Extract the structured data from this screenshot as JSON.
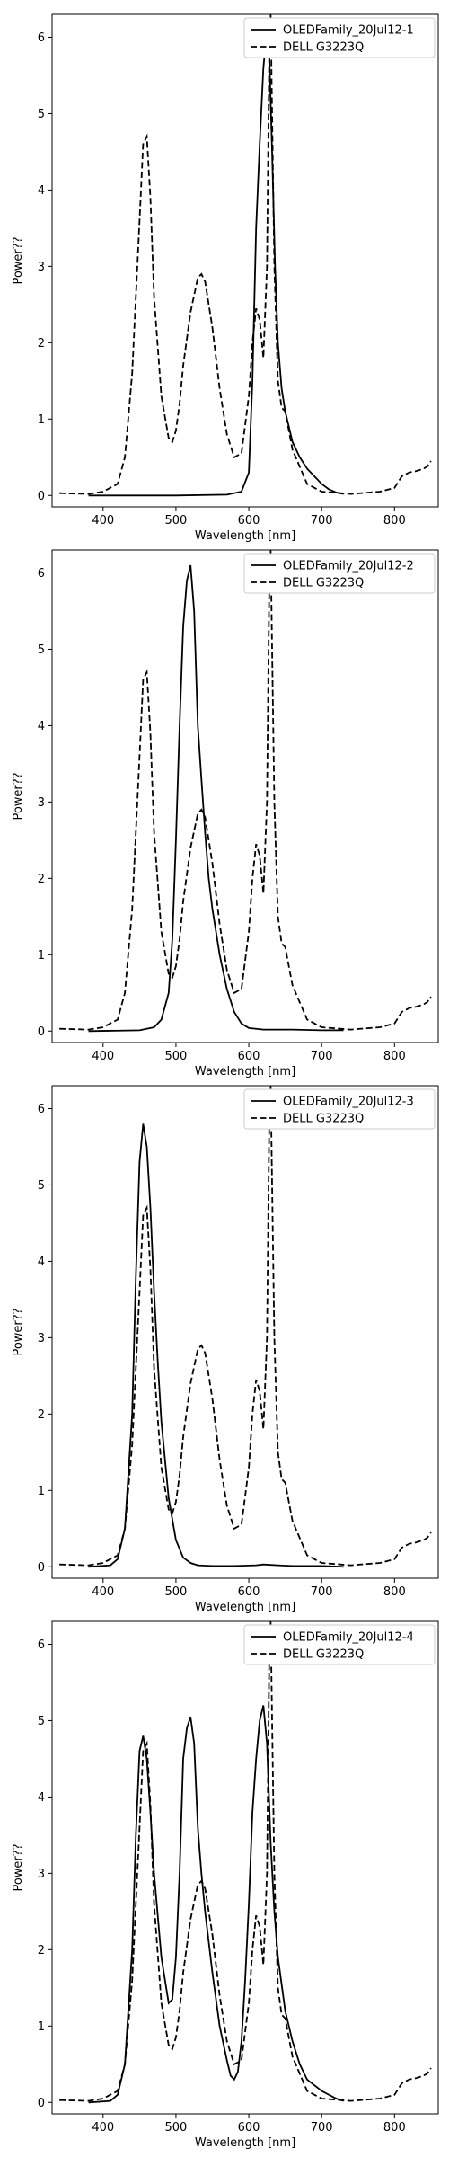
{
  "chart_data": [
    {
      "type": "line",
      "xlabel": "Wavelength [nm]",
      "ylabel": "Power??",
      "xlim": [
        330,
        860
      ],
      "ylim": [
        -0.15,
        6.3
      ],
      "xticks": [
        400,
        500,
        600,
        700,
        800
      ],
      "yticks": [
        0,
        1,
        2,
        3,
        4,
        5,
        6
      ],
      "legend": "upper-right",
      "series": [
        {
          "name": "OLEDFamily_20Jul12-1",
          "style": "solid",
          "x": [
            380,
            500,
            570,
            590,
            600,
            605,
            610,
            615,
            620,
            625,
            628,
            632,
            636,
            640,
            645,
            650,
            655,
            660,
            670,
            680,
            690,
            700,
            710,
            720,
            730
          ],
          "y": [
            0,
            0,
            0.01,
            0.05,
            0.3,
            1.5,
            3.5,
            4.6,
            5.6,
            6.1,
            5.8,
            4.5,
            3.0,
            2.0,
            1.4,
            1.1,
            0.9,
            0.7,
            0.5,
            0.35,
            0.25,
            0.15,
            0.08,
            0.04,
            0.02
          ]
        },
        {
          "name": "DELL G3223Q",
          "style": "dashed",
          "x": [
            340,
            380,
            400,
            420,
            430,
            440,
            450,
            455,
            460,
            465,
            470,
            480,
            490,
            495,
            500,
            505,
            510,
            520,
            530,
            535,
            540,
            550,
            560,
            570,
            580,
            590,
            600,
            605,
            610,
            615,
            620,
            625,
            628,
            630,
            632,
            635,
            640,
            645,
            650,
            660,
            680,
            700,
            740,
            780,
            800,
            810,
            820,
            830,
            840,
            845,
            850
          ],
          "y": [
            0.03,
            0.02,
            0.05,
            0.15,
            0.5,
            1.6,
            3.6,
            4.6,
            4.7,
            3.9,
            2.6,
            1.3,
            0.75,
            0.7,
            0.85,
            1.2,
            1.7,
            2.4,
            2.85,
            2.9,
            2.8,
            2.2,
            1.4,
            0.8,
            0.5,
            0.55,
            1.3,
            2.0,
            2.45,
            2.3,
            1.8,
            3.0,
            5.8,
            6.3,
            5.0,
            3.0,
            1.5,
            1.15,
            1.1,
            0.6,
            0.15,
            0.05,
            0.02,
            0.05,
            0.1,
            0.25,
            0.3,
            0.32,
            0.35,
            0.38,
            0.45
          ]
        }
      ]
    },
    {
      "type": "line",
      "xlabel": "Wavelength [nm]",
      "ylabel": "Power??",
      "xlim": [
        330,
        860
      ],
      "ylim": [
        -0.15,
        6.3
      ],
      "xticks": [
        400,
        500,
        600,
        700,
        800
      ],
      "yticks": [
        0,
        1,
        2,
        3,
        4,
        5,
        6
      ],
      "legend": "upper-right",
      "series": [
        {
          "name": "OLEDFamily_20Jul12-2",
          "style": "solid",
          "x": [
            380,
            450,
            470,
            480,
            490,
            495,
            500,
            505,
            510,
            515,
            520,
            525,
            530,
            535,
            540,
            545,
            550,
            560,
            570,
            580,
            590,
            600,
            620,
            640,
            660,
            700,
            730
          ],
          "y": [
            0,
            0.01,
            0.05,
            0.15,
            0.5,
            1.2,
            2.5,
            4.0,
            5.3,
            5.9,
            6.1,
            5.5,
            4.0,
            3.3,
            2.6,
            2.0,
            1.6,
            1.0,
            0.55,
            0.25,
            0.1,
            0.04,
            0.02,
            0.02,
            0.02,
            0.01,
            0.01
          ]
        },
        {
          "name": "DELL G3223Q",
          "style": "dashed",
          "x": [
            340,
            380,
            400,
            420,
            430,
            440,
            450,
            455,
            460,
            465,
            470,
            480,
            490,
            495,
            500,
            505,
            510,
            520,
            530,
            535,
            540,
            550,
            560,
            570,
            580,
            590,
            600,
            605,
            610,
            615,
            620,
            625,
            628,
            630,
            632,
            635,
            640,
            645,
            650,
            660,
            680,
            700,
            740,
            780,
            800,
            810,
            820,
            830,
            840,
            845,
            850
          ],
          "y": [
            0.03,
            0.02,
            0.05,
            0.15,
            0.5,
            1.6,
            3.6,
            4.6,
            4.7,
            3.9,
            2.6,
            1.3,
            0.75,
            0.7,
            0.85,
            1.2,
            1.7,
            2.4,
            2.85,
            2.9,
            2.8,
            2.2,
            1.4,
            0.8,
            0.5,
            0.55,
            1.3,
            2.0,
            2.45,
            2.3,
            1.8,
            3.0,
            5.8,
            6.3,
            5.0,
            3.0,
            1.5,
            1.15,
            1.1,
            0.6,
            0.15,
            0.05,
            0.02,
            0.05,
            0.1,
            0.25,
            0.3,
            0.32,
            0.35,
            0.38,
            0.45
          ]
        }
      ]
    },
    {
      "type": "line",
      "xlabel": "Wavelength [nm]",
      "ylabel": "Power??",
      "xlim": [
        330,
        860
      ],
      "ylim": [
        -0.15,
        6.3
      ],
      "xticks": [
        400,
        500,
        600,
        700,
        800
      ],
      "yticks": [
        0,
        1,
        2,
        3,
        4,
        5,
        6
      ],
      "legend": "upper-right",
      "series": [
        {
          "name": "OLEDFamily_20Jul12-3",
          "style": "solid",
          "x": [
            380,
            410,
            420,
            430,
            440,
            445,
            450,
            455,
            460,
            465,
            470,
            475,
            480,
            490,
            500,
            510,
            520,
            530,
            550,
            580,
            610,
            620,
            640,
            660,
            700,
            730
          ],
          "y": [
            0,
            0.02,
            0.1,
            0.5,
            2.0,
            3.8,
            5.3,
            5.8,
            5.5,
            4.7,
            3.6,
            2.7,
            1.9,
            0.9,
            0.35,
            0.12,
            0.05,
            0.02,
            0.01,
            0.01,
            0.02,
            0.03,
            0.02,
            0.01,
            0.01,
            0.0
          ]
        },
        {
          "name": "DELL G3223Q",
          "style": "dashed",
          "x": [
            340,
            380,
            400,
            420,
            430,
            440,
            450,
            455,
            460,
            465,
            470,
            480,
            490,
            495,
            500,
            505,
            510,
            520,
            530,
            535,
            540,
            550,
            560,
            570,
            580,
            590,
            600,
            605,
            610,
            615,
            620,
            625,
            628,
            630,
            632,
            635,
            640,
            645,
            650,
            660,
            680,
            700,
            740,
            780,
            800,
            810,
            820,
            830,
            840,
            845,
            850
          ],
          "y": [
            0.03,
            0.02,
            0.05,
            0.15,
            0.5,
            1.6,
            3.6,
            4.6,
            4.7,
            3.9,
            2.6,
            1.3,
            0.75,
            0.7,
            0.85,
            1.2,
            1.7,
            2.4,
            2.85,
            2.9,
            2.8,
            2.2,
            1.4,
            0.8,
            0.5,
            0.55,
            1.3,
            2.0,
            2.45,
            2.3,
            1.8,
            3.0,
            5.8,
            6.3,
            5.0,
            3.0,
            1.5,
            1.15,
            1.1,
            0.6,
            0.15,
            0.05,
            0.02,
            0.05,
            0.1,
            0.25,
            0.3,
            0.32,
            0.35,
            0.38,
            0.45
          ]
        }
      ]
    },
    {
      "type": "line",
      "xlabel": "Wavelength [nm]",
      "ylabel": "Power??",
      "xlim": [
        330,
        860
      ],
      "ylim": [
        -0.15,
        6.3
      ],
      "xticks": [
        400,
        500,
        600,
        700,
        800
      ],
      "yticks": [
        0,
        1,
        2,
        3,
        4,
        5,
        6
      ],
      "legend": "upper-right",
      "series": [
        {
          "name": "OLEDFamily_20Jul12-4",
          "style": "solid",
          "x": [
            380,
            410,
            420,
            430,
            440,
            445,
            450,
            455,
            460,
            465,
            470,
            480,
            490,
            495,
            500,
            505,
            510,
            515,
            520,
            525,
            530,
            535,
            540,
            550,
            560,
            570,
            575,
            580,
            585,
            590,
            595,
            600,
            605,
            610,
            615,
            620,
            625,
            630,
            635,
            640,
            650,
            660,
            670,
            680,
            700,
            720,
            730
          ],
          "y": [
            0,
            0.02,
            0.1,
            0.5,
            2.0,
            3.5,
            4.6,
            4.8,
            4.5,
            3.8,
            3.0,
            1.9,
            1.3,
            1.35,
            1.9,
            3.0,
            4.5,
            4.9,
            5.05,
            4.7,
            3.6,
            3.0,
            2.5,
            1.7,
            1.0,
            0.55,
            0.35,
            0.3,
            0.4,
            0.8,
            1.6,
            2.6,
            3.8,
            4.5,
            5.0,
            5.2,
            4.7,
            3.4,
            2.5,
            1.9,
            1.2,
            0.8,
            0.5,
            0.3,
            0.15,
            0.05,
            0.02
          ]
        },
        {
          "name": "DELL G3223Q",
          "style": "dashed",
          "x": [
            340,
            380,
            400,
            420,
            430,
            440,
            450,
            455,
            460,
            465,
            470,
            480,
            490,
            495,
            500,
            505,
            510,
            520,
            530,
            535,
            540,
            550,
            560,
            570,
            580,
            590,
            600,
            605,
            610,
            615,
            620,
            625,
            628,
            630,
            632,
            635,
            640,
            645,
            650,
            660,
            680,
            700,
            740,
            780,
            800,
            810,
            820,
            830,
            840,
            845,
            850
          ],
          "y": [
            0.03,
            0.02,
            0.05,
            0.15,
            0.5,
            1.6,
            3.6,
            4.6,
            4.7,
            3.9,
            2.6,
            1.3,
            0.75,
            0.7,
            0.85,
            1.2,
            1.7,
            2.4,
            2.85,
            2.9,
            2.8,
            2.2,
            1.4,
            0.8,
            0.5,
            0.55,
            1.3,
            2.0,
            2.45,
            2.3,
            1.8,
            3.0,
            5.8,
            6.3,
            5.0,
            3.0,
            1.5,
            1.15,
            1.1,
            0.6,
            0.15,
            0.05,
            0.02,
            0.05,
            0.1,
            0.25,
            0.3,
            0.32,
            0.35,
            0.38,
            0.45
          ]
        }
      ]
    }
  ]
}
